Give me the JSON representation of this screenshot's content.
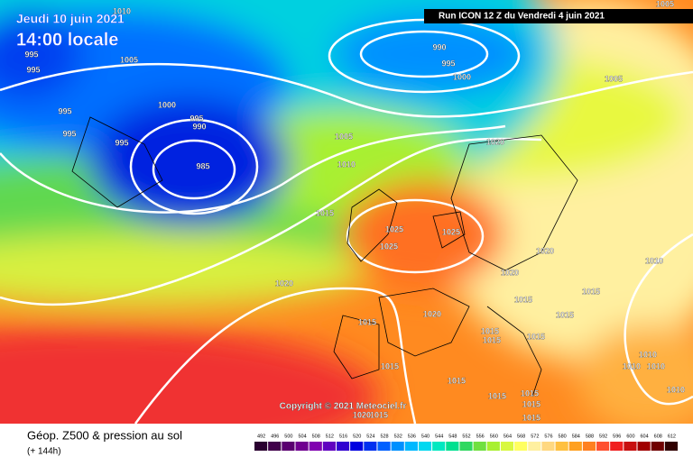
{
  "header": {
    "date": "Jeudi 10 juin 2021",
    "time": "14:00 locale",
    "run": "Run ICON 12 Z du Vendredi 4 juin 2021"
  },
  "map": {
    "copyright": "Copyright © 2021 Meteociel.fr",
    "isobar_labels": [
      "1010",
      "1005",
      "995",
      "995",
      "1005",
      "990",
      "995",
      "1000",
      "1005",
      "1000",
      "995",
      "995",
      "990",
      "995",
      "995",
      "1005",
      "1020",
      "985",
      "1010",
      "1015",
      "1025",
      "1025",
      "1025",
      "1020",
      "1010",
      "1020",
      "1020",
      "1015",
      "1015",
      "1015",
      "1020",
      "1015",
      "1015",
      "1015",
      "1015",
      "1015",
      "1010",
      "1010",
      "1010",
      "1015",
      "1015",
      "1015",
      "1015",
      "1010",
      "1015",
      "1020",
      "1015"
    ]
  },
  "footer": {
    "title": "Géop. Z500 & pression au sol",
    "lead": "(+ 144h)"
  },
  "legend": {
    "scale": [
      492,
      496,
      500,
      504,
      508,
      512,
      516,
      520,
      524,
      528,
      532,
      536,
      540,
      544,
      548,
      552,
      556,
      560,
      564,
      568,
      572,
      576,
      580,
      584,
      588,
      592,
      596,
      600,
      604,
      608,
      612
    ],
    "colors": [
      "#2a0030",
      "#40004a",
      "#5a0070",
      "#700090",
      "#8000b0",
      "#6000c0",
      "#3000d0",
      "#0000e0",
      "#0030f0",
      "#0060ff",
      "#0090ff",
      "#00b8ff",
      "#00d8f0",
      "#00e8c0",
      "#00e090",
      "#30d860",
      "#70e040",
      "#a8f030",
      "#d8f840",
      "#ffff60",
      "#fff0a0",
      "#ffd880",
      "#ffc040",
      "#ffa020",
      "#ff8020",
      "#ff5030",
      "#f02020",
      "#c81010",
      "#a00000",
      "#700000",
      "#300000"
    ]
  }
}
